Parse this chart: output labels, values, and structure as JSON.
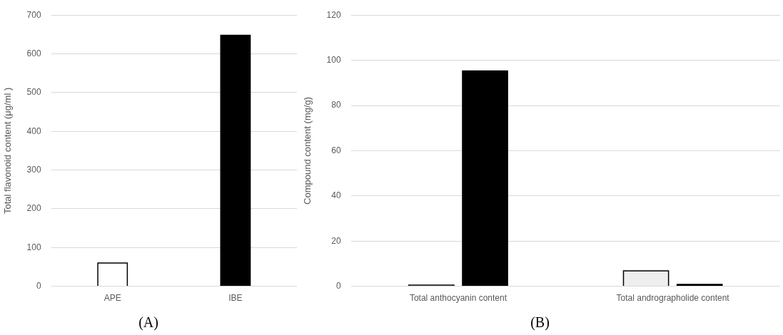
{
  "chart_data": [
    {
      "type": "bar",
      "title": "(A)",
      "ylabel": "Total flavonoid content (μg/ml )",
      "categories": [
        "APE",
        "IBE"
      ],
      "values": [
        60,
        648
      ],
      "colors": [
        "#ffffff",
        "#000000"
      ],
      "ylim": [
        0,
        700
      ],
      "yticks": [
        0,
        100,
        200,
        300,
        400,
        500,
        600,
        700
      ],
      "grid": "y",
      "legend": false
    },
    {
      "type": "bar",
      "title": "(B)",
      "ylabel": "Compound content (mg/g)",
      "categories": [
        "Total anthocyanin content",
        "Total andrographolide content"
      ],
      "series": [
        {
          "colors": [
            "#ffffff",
            "#eeeeee"
          ],
          "values": [
            0.5,
            6.8
          ]
        },
        {
          "color": "#000000",
          "values": [
            95.3,
            0.8
          ]
        }
      ],
      "ylim": [
        0,
        120
      ],
      "yticks": [
        0,
        20,
        40,
        60,
        80,
        100,
        120
      ],
      "grid": "y",
      "legend": false
    }
  ]
}
